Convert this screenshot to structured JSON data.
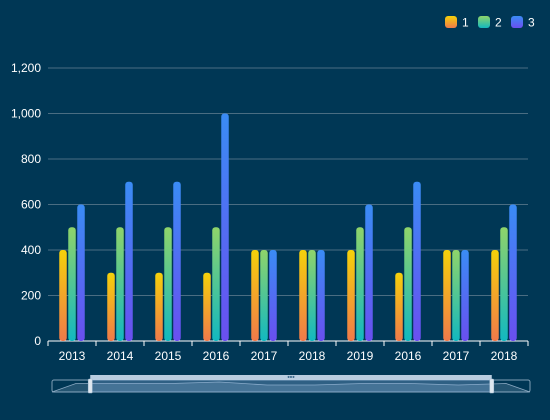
{
  "chart_data": {
    "type": "bar",
    "categories": [
      "2013",
      "2014",
      "2015",
      "2016",
      "2017",
      "2018",
      "2019",
      "2016",
      "2017",
      "2018"
    ],
    "series": [
      {
        "name": "1",
        "values": [
          400,
          300,
          300,
          300,
          400,
          400,
          400,
          300,
          400,
          400
        ],
        "gradient": [
          "#f5d10a",
          "#f07a4a"
        ]
      },
      {
        "name": "2",
        "values": [
          500,
          500,
          500,
          500,
          400,
          400,
          500,
          500,
          400,
          500
        ],
        "gradient": [
          "#8fd46a",
          "#12b8c0"
        ]
      },
      {
        "name": "3",
        "values": [
          600,
          700,
          700,
          1000,
          400,
          400,
          600,
          700,
          400,
          600
        ],
        "gradient": [
          "#3a8cf5",
          "#6a4ff0"
        ]
      }
    ],
    "ylim": [
      0,
      1200
    ],
    "yticks": [
      0,
      200,
      400,
      600,
      800,
      1000,
      1200
    ],
    "ytick_labels": [
      "0",
      "200",
      "400",
      "600",
      "800",
      "1,000",
      "1,200"
    ],
    "grid": true,
    "legend_position": "top-right",
    "data_zoom": {
      "start": 0.08,
      "end": 0.92
    }
  },
  "colors": {
    "background": "#003755",
    "text": "#ffffff",
    "grid": "#4a6d82",
    "axis": "#ffffff"
  }
}
